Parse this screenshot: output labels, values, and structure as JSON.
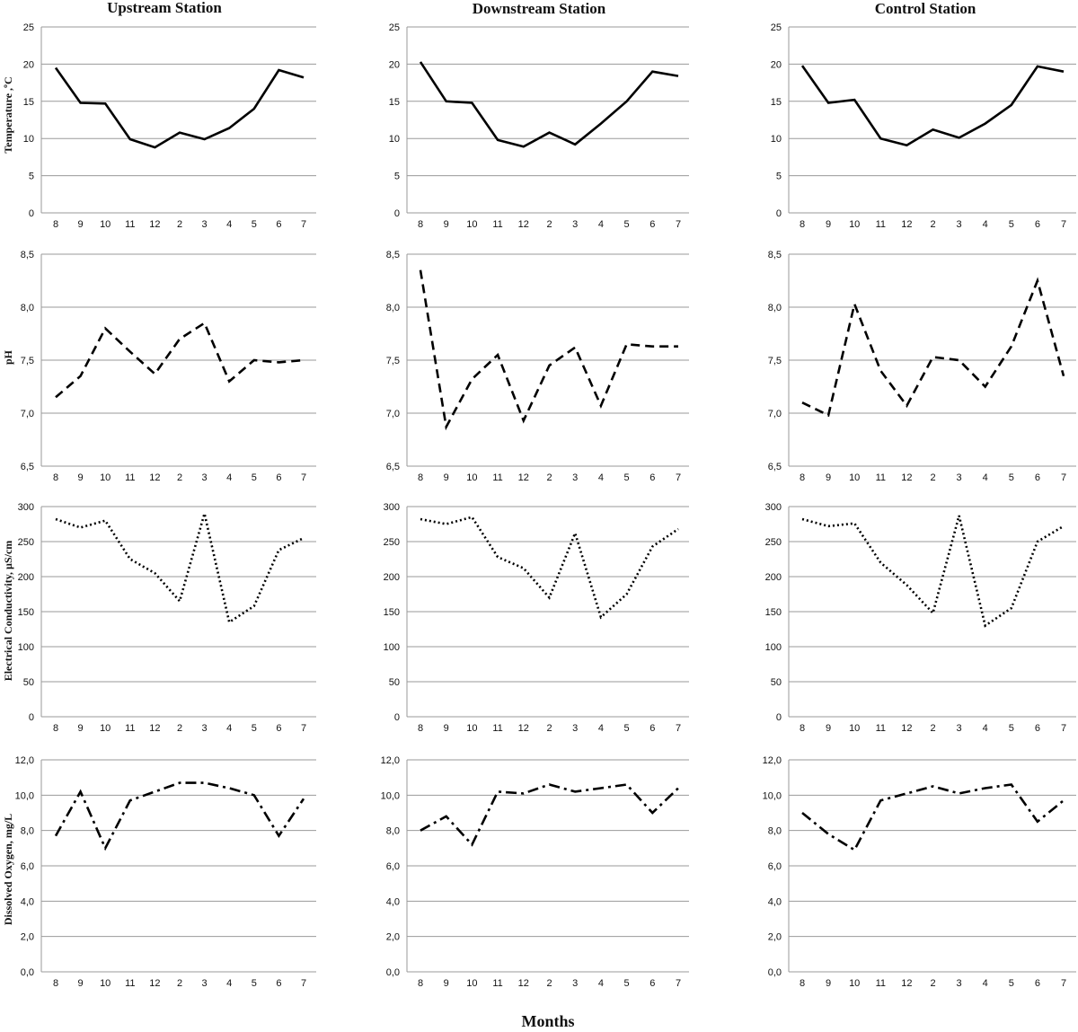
{
  "figure": {
    "columns": [
      "Upstream Station",
      "Downstream Station",
      "Control Station"
    ],
    "row_labels": [
      "Temperature ,ºC",
      "pH",
      "Electrical Conductivity, µS/cm",
      "Dissolved Oxygen, mg/L"
    ],
    "xlabel": "Months"
  },
  "chart_data": [
    {
      "type": "line",
      "station": "Upstream Station",
      "ylabel": "Temperature ,ºC",
      "categories": [
        "8",
        "9",
        "10",
        "11",
        "12",
        "2",
        "3",
        "4",
        "5",
        "6",
        "7"
      ],
      "ylim": [
        0,
        25
      ],
      "yticks": [
        "0",
        "5",
        "10",
        "15",
        "20",
        "25"
      ],
      "line_style": "solid",
      "values": [
        19.5,
        14.8,
        14.7,
        9.9,
        8.8,
        10.8,
        9.9,
        11.4,
        14.0,
        19.2,
        18.2
      ]
    },
    {
      "type": "line",
      "station": "Downstream Station",
      "ylabel": "",
      "categories": [
        "8",
        "9",
        "10",
        "11",
        "12",
        "2",
        "3",
        "4",
        "5",
        "6",
        "7"
      ],
      "ylim": [
        0,
        25
      ],
      "yticks": [
        "0",
        "5",
        "10",
        "15",
        "20",
        "25"
      ],
      "line_style": "solid",
      "values": [
        20.3,
        15.0,
        14.8,
        9.8,
        8.9,
        10.8,
        9.2,
        12.0,
        15.0,
        19.0,
        18.4
      ]
    },
    {
      "type": "line",
      "station": "Control Station",
      "ylabel": "",
      "categories": [
        "8",
        "9",
        "10",
        "11",
        "12",
        "2",
        "3",
        "4",
        "5",
        "6",
        "7"
      ],
      "ylim": [
        0,
        25
      ],
      "yticks": [
        "0",
        "5",
        "10",
        "15",
        "20",
        "25"
      ],
      "line_style": "solid",
      "values": [
        19.8,
        14.8,
        15.2,
        10.0,
        9.1,
        11.2,
        10.1,
        12.0,
        14.5,
        19.7,
        19.0
      ]
    },
    {
      "type": "line",
      "station": "Upstream Station",
      "ylabel": "pH",
      "categories": [
        "8",
        "9",
        "10",
        "11",
        "12",
        "2",
        "3",
        "4",
        "5",
        "6",
        "7"
      ],
      "ylim": [
        6.5,
        8.5
      ],
      "yticks": [
        "6,5",
        "7,0",
        "7,5",
        "8,0",
        "8,5"
      ],
      "line_style": "dash",
      "values": [
        7.15,
        7.35,
        7.8,
        7.58,
        7.37,
        7.7,
        7.85,
        7.3,
        7.5,
        7.48,
        7.5
      ]
    },
    {
      "type": "line",
      "station": "Downstream Station",
      "ylabel": "",
      "categories": [
        "8",
        "9",
        "10",
        "11",
        "12",
        "2",
        "3",
        "4",
        "5",
        "6",
        "7"
      ],
      "ylim": [
        6.5,
        8.5
      ],
      "yticks": [
        "6,5",
        "7,0",
        "7,5",
        "8,0",
        "8,5"
      ],
      "line_style": "dash",
      "values": [
        8.35,
        6.87,
        7.32,
        7.55,
        6.93,
        7.45,
        7.62,
        7.07,
        7.65,
        7.63,
        7.63
      ]
    },
    {
      "type": "line",
      "station": "Control Station",
      "ylabel": "",
      "categories": [
        "8",
        "9",
        "10",
        "11",
        "12",
        "2",
        "3",
        "4",
        "5",
        "6",
        "7"
      ],
      "ylim": [
        6.5,
        8.5
      ],
      "yticks": [
        "6,5",
        "7,0",
        "7,5",
        "8,0",
        "8,5"
      ],
      "line_style": "dash",
      "values": [
        7.1,
        6.98,
        8.03,
        7.4,
        7.07,
        7.53,
        7.5,
        7.25,
        7.63,
        8.25,
        7.35
      ]
    },
    {
      "type": "line",
      "station": "Upstream Station",
      "ylabel": "Electrical Conductivity, µS/cm",
      "categories": [
        "8",
        "9",
        "10",
        "11",
        "12",
        "2",
        "3",
        "4",
        "5",
        "6",
        "7"
      ],
      "ylim": [
        0,
        300
      ],
      "yticks": [
        "0",
        "50",
        "100",
        "150",
        "200",
        "250",
        "300"
      ],
      "line_style": "dot",
      "values": [
        282,
        270,
        280,
        225,
        205,
        165,
        290,
        135,
        158,
        238,
        255
      ]
    },
    {
      "type": "line",
      "station": "Downstream Station",
      "ylabel": "",
      "categories": [
        "8",
        "9",
        "10",
        "11",
        "12",
        "2",
        "3",
        "4",
        "5",
        "6",
        "7"
      ],
      "ylim": [
        0,
        300
      ],
      "yticks": [
        "0",
        "50",
        "100",
        "150",
        "200",
        "250",
        "300"
      ],
      "line_style": "dot",
      "values": [
        282,
        275,
        285,
        228,
        212,
        170,
        262,
        142,
        175,
        243,
        268
      ]
    },
    {
      "type": "line",
      "station": "Control Station",
      "ylabel": "",
      "categories": [
        "8",
        "9",
        "10",
        "11",
        "12",
        "2",
        "3",
        "4",
        "5",
        "6",
        "7"
      ],
      "ylim": [
        0,
        300
      ],
      "yticks": [
        "0",
        "50",
        "100",
        "150",
        "200",
        "250",
        "300"
      ],
      "line_style": "dot",
      "values": [
        282,
        272,
        276,
        220,
        188,
        148,
        287,
        130,
        155,
        250,
        272
      ]
    },
    {
      "type": "line",
      "station": "Upstream Station",
      "ylabel": "Dissolved Oxygen, mg/L",
      "categories": [
        "8",
        "9",
        "10",
        "11",
        "12",
        "2",
        "3",
        "4",
        "5",
        "6",
        "7"
      ],
      "ylim": [
        0,
        12
      ],
      "yticks": [
        "0,0",
        "2,0",
        "4,0",
        "6,0",
        "8,0",
        "10,0",
        "12,0"
      ],
      "line_style": "dashdot",
      "values": [
        7.7,
        10.2,
        7.0,
        9.7,
        10.2,
        10.7,
        10.7,
        10.4,
        10.0,
        7.7,
        9.8
      ]
    },
    {
      "type": "line",
      "station": "Downstream Station",
      "ylabel": "",
      "categories": [
        "8",
        "9",
        "10",
        "11",
        "12",
        "2",
        "3",
        "4",
        "5",
        "6",
        "7"
      ],
      "ylim": [
        0,
        12
      ],
      "yticks": [
        "0,0",
        "2,0",
        "4,0",
        "6,0",
        "8,0",
        "10,0",
        "12,0"
      ],
      "line_style": "dashdot",
      "values": [
        8.0,
        8.8,
        7.2,
        10.2,
        10.1,
        10.6,
        10.2,
        10.4,
        10.6,
        9.0,
        10.4
      ]
    },
    {
      "type": "line",
      "station": "Control Station",
      "ylabel": "",
      "categories": [
        "8",
        "9",
        "10",
        "11",
        "12",
        "2",
        "3",
        "4",
        "5",
        "6",
        "7"
      ],
      "ylim": [
        0,
        12
      ],
      "yticks": [
        "0,0",
        "2,0",
        "4,0",
        "6,0",
        "8,0",
        "10,0",
        "12,0"
      ],
      "line_style": "dashdot",
      "values": [
        9.0,
        7.8,
        6.9,
        9.7,
        10.1,
        10.5,
        10.1,
        10.4,
        10.6,
        8.5,
        9.7
      ]
    }
  ]
}
